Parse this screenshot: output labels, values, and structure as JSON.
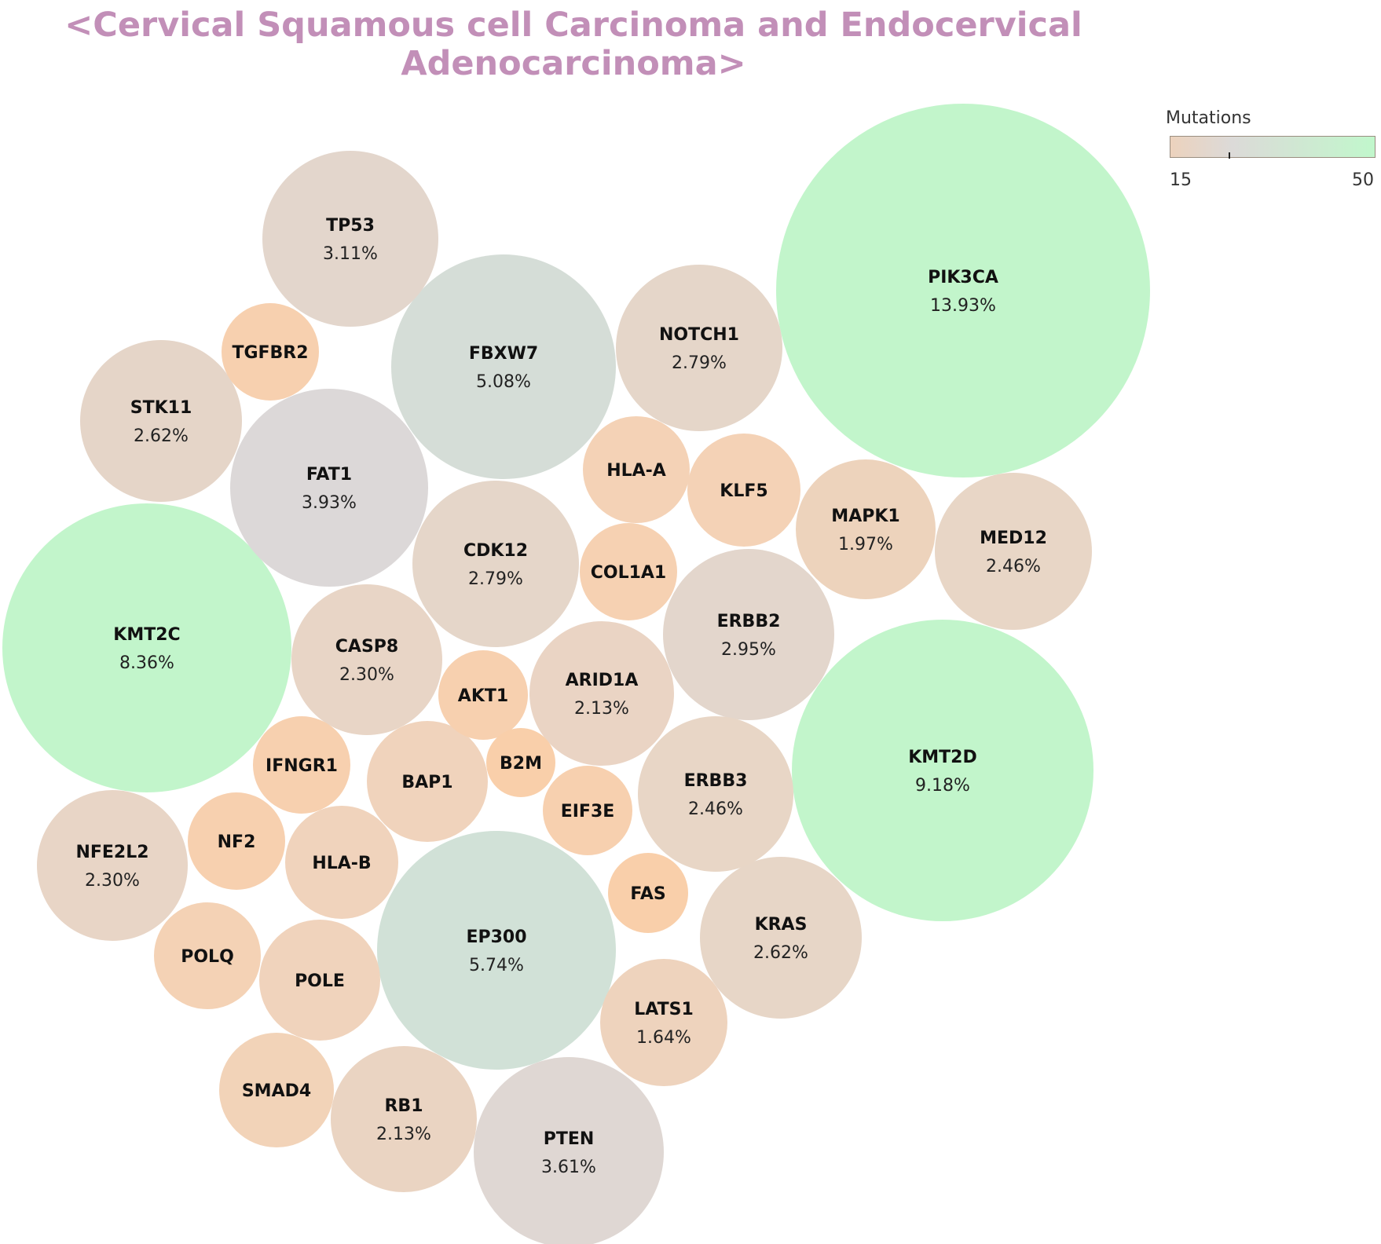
{
  "chart_data": {
    "type": "bubble",
    "title": [
      "<Cervical Squamous cell Carcinoma and Endocervical",
      "Adenocarcinoma>"
    ],
    "legend": {
      "title": "Mutations",
      "min": "15",
      "max": "50",
      "min_value": 15,
      "max_value": 50,
      "tick_value": 25,
      "colors": [
        "#ecd2bd",
        "#dcdad8",
        "#c1f7cc"
      ]
    },
    "bubbles": [
      {
        "gene": "PIK3CA",
        "percent": "13.93%",
        "mutations": 50,
        "color": "#c2f5cb"
      },
      {
        "gene": "KMT2D",
        "percent": "9.18%",
        "mutations": 50,
        "color": "#c2f5cb"
      },
      {
        "gene": "KMT2C",
        "percent": "8.36%",
        "mutations": 50,
        "color": "#c2f5cb"
      },
      {
        "gene": "EP300",
        "percent": "5.74%",
        "mutations": 35,
        "color": "#d1e1d7"
      },
      {
        "gene": "FBXW7",
        "percent": "5.08%",
        "mutations": 31,
        "color": "#d5ddd7"
      },
      {
        "gene": "FAT1",
        "percent": "3.93%",
        "mutations": 24,
        "color": "#dcd8d8"
      },
      {
        "gene": "PTEN",
        "percent": "3.61%",
        "mutations": 22,
        "color": "#dfd7d3"
      },
      {
        "gene": "TP53",
        "percent": "3.11%",
        "mutations": 19,
        "color": "#e3d6cc"
      },
      {
        "gene": "ERBB2",
        "percent": "2.95%",
        "mutations": 18,
        "color": "#e3d6cc"
      },
      {
        "gene": "NOTCH1",
        "percent": "2.79%",
        "mutations": 17,
        "color": "#e5d6c9"
      },
      {
        "gene": "CDK12",
        "percent": "2.79%",
        "mutations": 17,
        "color": "#e5d6c9"
      },
      {
        "gene": "STK11",
        "percent": "2.62%",
        "mutations": 16,
        "color": "#e5d5c8"
      },
      {
        "gene": "KRAS",
        "percent": "2.62%",
        "mutations": 16,
        "color": "#e7d6c7"
      },
      {
        "gene": "MED12",
        "percent": "2.46%",
        "mutations": 15,
        "color": "#e8d6c6"
      },
      {
        "gene": "ERBB3",
        "percent": "2.46%",
        "mutations": 15,
        "color": "#e8d6c6"
      },
      {
        "gene": "CASP8",
        "percent": "2.30%",
        "mutations": 14,
        "color": "#e8d5c6"
      },
      {
        "gene": "NFE2L2",
        "percent": "2.30%",
        "mutations": 14,
        "color": "#e8d5c6"
      },
      {
        "gene": "ARID1A",
        "percent": "2.13%",
        "mutations": 13,
        "color": "#ead4c4"
      },
      {
        "gene": "RB1",
        "percent": "2.13%",
        "mutations": 13,
        "color": "#ead4c2"
      },
      {
        "gene": "MAPK1",
        "percent": "1.97%",
        "mutations": 12,
        "color": "#edd3bc"
      },
      {
        "gene": "LATS1",
        "percent": "1.64%",
        "mutations": 10,
        "color": "#eed3bd"
      },
      {
        "gene": "HLA-A",
        "percent": "",
        "color": "#f4d2b6"
      },
      {
        "gene": "KLF5",
        "percent": "",
        "color": "#f4d2b6"
      },
      {
        "gene": "COL1A1",
        "percent": "",
        "color": "#f6d1b2"
      },
      {
        "gene": "BAP1",
        "percent": "",
        "color": "#f0d3bc"
      },
      {
        "gene": "HLA-B",
        "percent": "",
        "color": "#f0d3bc"
      },
      {
        "gene": "POLE",
        "percent": "",
        "color": "#f0d3bc"
      },
      {
        "gene": "SMAD4",
        "percent": "",
        "color": "#f2d3b8"
      },
      {
        "gene": "POLQ",
        "percent": "",
        "color": "#f4d2b5"
      },
      {
        "gene": "TGFBR2",
        "percent": "",
        "color": "#f7d0af"
      },
      {
        "gene": "AKT1",
        "percent": "",
        "color": "#f7d0af"
      },
      {
        "gene": "IFNGR1",
        "percent": "",
        "color": "#f7d0af"
      },
      {
        "gene": "NF2",
        "percent": "",
        "color": "#f7d0af"
      },
      {
        "gene": "EIF3E",
        "percent": "",
        "color": "#f7d0af"
      },
      {
        "gene": "FAS",
        "percent": "",
        "color": "#f9cfaa"
      },
      {
        "gene": "B2M",
        "percent": "",
        "color": "#f9cfaa"
      }
    ]
  }
}
